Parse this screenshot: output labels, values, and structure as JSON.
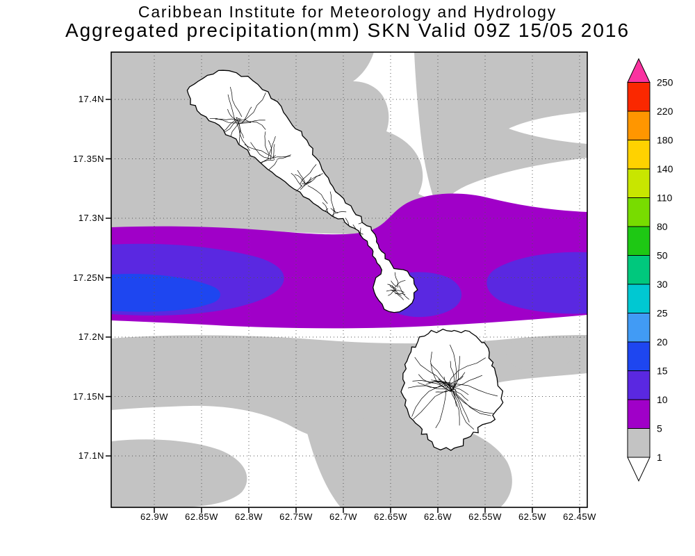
{
  "header": {
    "line1": "Caribbean Institute for Meteorology and Hydrology",
    "line2": "Aggregated precipitation(mm) SKN Valid 09Z 15/05 2016"
  },
  "map": {
    "lat_labels": [
      "17.4N",
      "17.35N",
      "17.3N",
      "17.25N",
      "17.2N",
      "17.15N",
      "17.1N"
    ],
    "lon_labels": [
      "62.9W",
      "62.85W",
      "62.8W",
      "62.75W",
      "62.7W",
      "62.65W",
      "62.6W",
      "62.55W",
      "62.5W",
      "62.45W"
    ],
    "fill_colors": {
      "gray": "#C3C3C3",
      "purple": "#A000C8",
      "violet": "#5A28E1",
      "blue": "#1E46F0",
      "land": "#FFFFFF",
      "coast": "#000000"
    }
  },
  "colorbar": {
    "levels": [
      1,
      5,
      10,
      15,
      20,
      25,
      30,
      50,
      80,
      110,
      140,
      180,
      220,
      250
    ],
    "colors_bottom_to_top": [
      "#FFFFFF",
      "#C3C3C3",
      "#A000C8",
      "#5A28E1",
      "#1E46F0",
      "#419BF5",
      "#00C8D2",
      "#00C87D",
      "#1EC814",
      "#78DC00",
      "#C8E600",
      "#FFD200",
      "#FF9600",
      "#FA2800",
      "#FA32A0"
    ]
  },
  "chart_data": {
    "type": "heatmap",
    "title": "Aggregated precipitation(mm) SKN Valid 09Z 15/05 2016",
    "units": "mm",
    "lat_ticks": [
      "17.1N",
      "17.15N",
      "17.2N",
      "17.25N",
      "17.3N",
      "17.35N",
      "17.4N"
    ],
    "lon_ticks": [
      "62.9W",
      "62.85W",
      "62.8W",
      "62.75W",
      "62.7W",
      "62.65W",
      "62.6W",
      "62.55W",
      "62.5W",
      "62.45W"
    ],
    "contour_levels_mm": [
      1,
      5,
      10,
      15,
      20,
      25,
      30,
      50,
      80,
      110,
      140,
      180,
      220,
      250
    ],
    "shaded_bands_visible_mm": [
      "1-5",
      "5-10",
      "10-15",
      "15-20"
    ],
    "description": "East-west band of 5-20mm precipitation across ~17.2N-17.3N between the two islands; maximum 15-20mm at the western map edge near 17.24N; 1-5mm bands to the north and south; islands outlined with drainage networks"
  }
}
